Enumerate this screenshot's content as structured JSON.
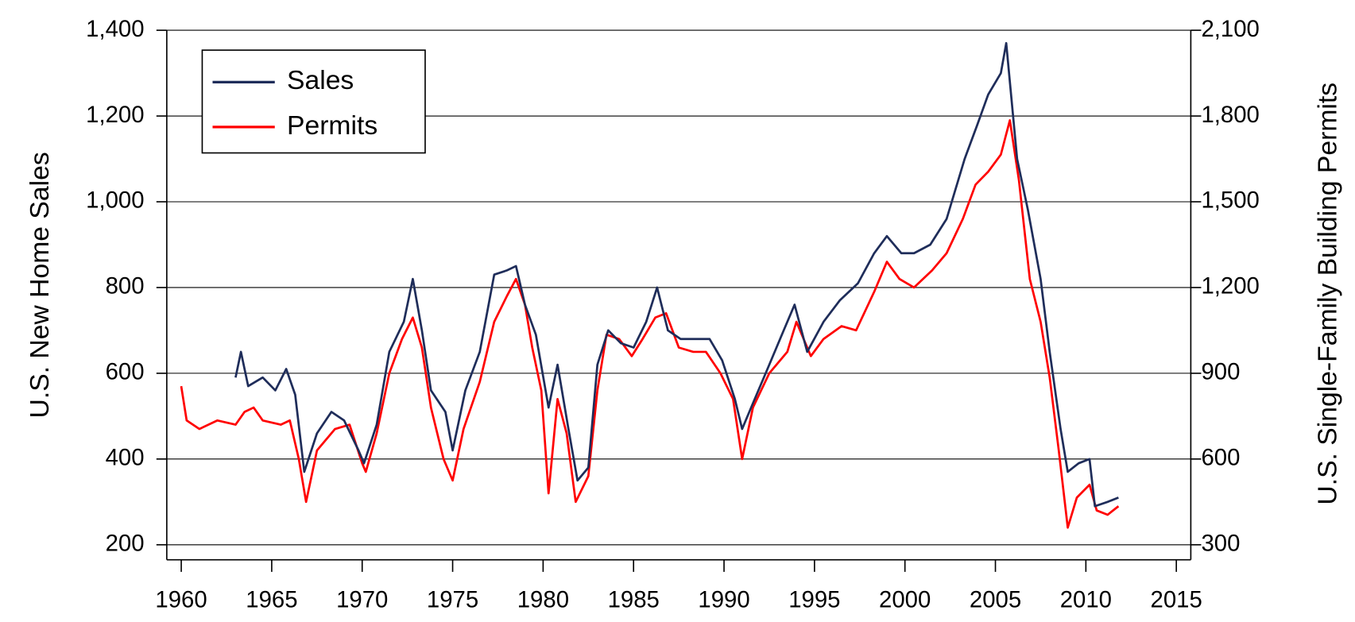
{
  "chart_data": {
    "type": "line",
    "ylabel": "U.S. New Home Sales",
    "y2label": "U.S. Single-Family Building Permits",
    "xlim": [
      1959.2,
      2015.8
    ],
    "xticks": [
      1960,
      1965,
      1970,
      1975,
      1980,
      1985,
      1990,
      1995,
      2000,
      2005,
      2010,
      2015
    ],
    "ylim": [
      165,
      1400
    ],
    "yticks": [
      200,
      400,
      600,
      800,
      {
        "value": 1000,
        "label": "1,000"
      },
      {
        "value": 1200,
        "label": "1,200"
      },
      {
        "value": 1400,
        "label": "1,400"
      }
    ],
    "y2lim": [
      247.5,
      2100
    ],
    "y2ticks": [
      300,
      600,
      900,
      {
        "value": 1200,
        "label": "1,200"
      },
      {
        "value": 1500,
        "label": "1,500"
      },
      {
        "value": 1800,
        "label": "1,800"
      },
      {
        "value": 2100,
        "label": "2,100"
      }
    ],
    "grid": true,
    "legend": "upper left",
    "series": [
      {
        "name": "Sales",
        "color": "#1f2d5a",
        "x": [
          1963.0,
          1963.3,
          1963.7,
          1964.5,
          1965.2,
          1965.8,
          1966.3,
          1966.8,
          1967.5,
          1968.3,
          1969.0,
          1969.8,
          1970.1,
          1970.8,
          1971.5,
          1972.3,
          1972.8,
          1973.3,
          1973.8,
          1974.6,
          1975.0,
          1975.7,
          1976.5,
          1977.3,
          1978.0,
          1978.5,
          1979.0,
          1979.6,
          1980.3,
          1980.8,
          1981.4,
          1981.9,
          1982.5,
          1983.0,
          1983.6,
          1984.3,
          1985.0,
          1985.7,
          1986.3,
          1986.9,
          1987.6,
          1988.4,
          1989.2,
          1989.9,
          1990.6,
          1991.0,
          1991.6,
          1992.5,
          1993.3,
          1993.9,
          1994.6,
          1995.5,
          1996.4,
          1997.4,
          1998.3,
          1999.0,
          1999.8,
          2000.5,
          2001.4,
          2002.3,
          2003.3,
          2004.0,
          2004.6,
          2005.3,
          2005.6,
          2006.2,
          2006.8,
          2007.5,
          2008.0,
          2008.6,
          2009.0,
          2009.6,
          2010.2,
          2010.5,
          2011.2,
          2011.8
        ],
        "values": [
          590,
          650,
          570,
          590,
          560,
          610,
          550,
          370,
          460,
          510,
          490,
          420,
          390,
          480,
          650,
          720,
          820,
          700,
          560,
          510,
          420,
          560,
          650,
          830,
          840,
          850,
          760,
          690,
          520,
          620,
          470,
          350,
          380,
          620,
          700,
          670,
          660,
          720,
          800,
          700,
          680,
          680,
          680,
          630,
          540,
          470,
          530,
          620,
          700,
          760,
          650,
          720,
          770,
          810,
          880,
          920,
          880,
          880,
          900,
          960,
          1100,
          1180,
          1250,
          1300,
          1370,
          1100,
          980,
          820,
          650,
          470,
          370,
          390,
          400,
          290,
          300,
          310
        ]
      },
      {
        "name": "Permits",
        "color": "#ff0000",
        "axis": "y2",
        "x": [
          1960.0,
          1960.3,
          1961.0,
          1962.0,
          1963.0,
          1963.5,
          1964.0,
          1964.5,
          1965.5,
          1966.0,
          1966.5,
          1966.9,
          1967.5,
          1968.5,
          1969.3,
          1970.0,
          1970.2,
          1970.8,
          1971.5,
          1972.2,
          1972.8,
          1973.3,
          1973.8,
          1974.5,
          1975.0,
          1975.6,
          1976.5,
          1977.3,
          1978.0,
          1978.5,
          1979.0,
          1979.4,
          1979.9,
          1980.3,
          1980.8,
          1981.3,
          1981.8,
          1982.5,
          1983.0,
          1983.5,
          1984.2,
          1984.9,
          1985.5,
          1986.2,
          1986.8,
          1987.5,
          1988.3,
          1989.0,
          1989.8,
          1990.5,
          1991.0,
          1991.6,
          1992.5,
          1993.5,
          1994.0,
          1994.8,
          1995.5,
          1996.5,
          1997.3,
          1998.3,
          1999.0,
          1999.7,
          2000.5,
          2001.5,
          2002.3,
          2003.2,
          2003.9,
          2004.6,
          2005.3,
          2005.8,
          2006.3,
          2006.9,
          2007.5,
          2008.0,
          2008.5,
          2009.0,
          2009.5,
          2010.2,
          2010.6,
          2011.2,
          2011.8
        ],
        "values": [
          855,
          735,
          705,
          735,
          720,
          765,
          780,
          735,
          720,
          735,
          600,
          450,
          630,
          705,
          720,
          585,
          555,
          690,
          900,
          1020,
          1095,
          990,
          780,
          600,
          525,
          705,
          870,
          1080,
          1170,
          1230,
          1140,
          990,
          840,
          480,
          810,
          690,
          450,
          540,
          840,
          1035,
          1020,
          960,
          1020,
          1095,
          1110,
          990,
          975,
          975,
          900,
          810,
          600,
          780,
          900,
          975,
          1080,
          960,
          1020,
          1065,
          1050,
          1185,
          1290,
          1230,
          1200,
          1260,
          1320,
          1440,
          1560,
          1605,
          1665,
          1785,
          1575,
          1230,
          1080,
          885,
          630,
          360,
          465,
          510,
          420,
          405,
          435
        ]
      }
    ]
  }
}
